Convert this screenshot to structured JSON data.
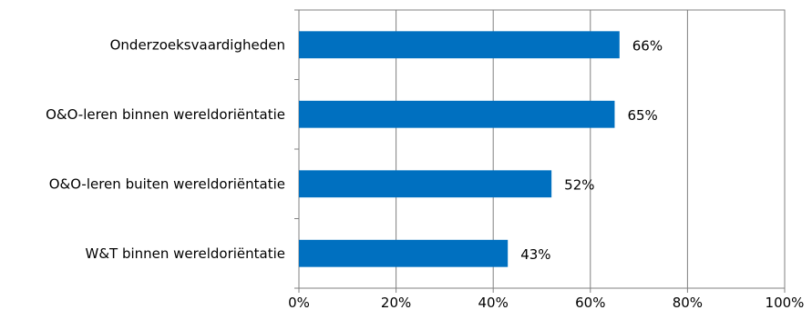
{
  "chart_data": {
    "type": "bar",
    "orientation": "horizontal",
    "categories": [
      "Onderzoeksvaardigheden",
      "O&O-leren binnen wereldoriëntatie",
      "O&O-leren buiten wereldoriëntatie",
      "W&T binnen wereldoriëntatie"
    ],
    "values": [
      66,
      65,
      52,
      43
    ],
    "data_labels": [
      "66%",
      "65%",
      "52%",
      "43%"
    ],
    "x_ticks": [
      "0%",
      "20%",
      "40%",
      "60%",
      "80%",
      "100%"
    ],
    "xlim": [
      0,
      100
    ],
    "grid": true,
    "legend": "none",
    "bar_color": "#0070c0",
    "title": "",
    "xlabel": "",
    "ylabel": ""
  }
}
